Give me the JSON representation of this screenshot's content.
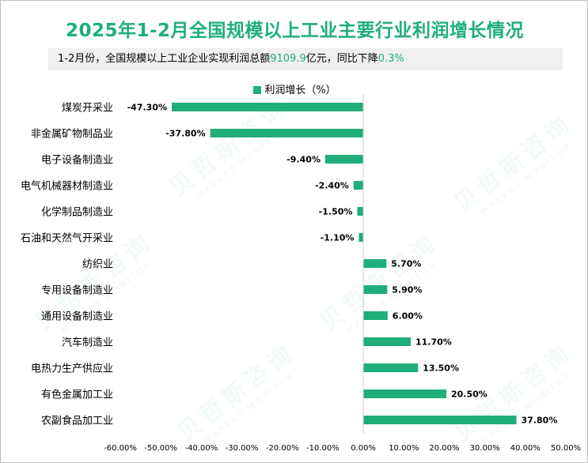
{
  "header": {
    "title": "2025年1-2月全国规模以上工业主要行业利润增长情况",
    "subtitle_prefix": "1-2月份，全国规模以上工业企业实现利润总额",
    "subtitle_amount": "9109.9",
    "subtitle_middle": "亿元，同比下降",
    "subtitle_change": "0.3%"
  },
  "watermark": {
    "brand_cn": "贝哲斯咨询",
    "brand_en": "MARKET MONITOR"
  },
  "colors": {
    "accent": "#1fae7a",
    "bar": "#1fae7a"
  },
  "chart_data": {
    "type": "bar",
    "orientation": "horizontal",
    "title": "2025年1-2月全国规模以上工业主要行业利润增长情况",
    "legend": [
      "利润增长（%）"
    ],
    "legend_position": "top",
    "categories": [
      "煤炭开采业",
      "非金属矿物制品业",
      "电子设备制造业",
      "电气机械器材制造业",
      "化学制品制造业",
      "石油和天然气开采业",
      "纺织业",
      "专用设备制造业",
      "通用设备制造业",
      "汽车制造业",
      "电热力生产供应业",
      "有色金属加工业",
      "农副食品加工业"
    ],
    "values": [
      -47.3,
      -37.8,
      -9.4,
      -2.4,
      -1.5,
      -1.1,
      5.7,
      5.9,
      6.0,
      11.7,
      13.5,
      20.5,
      37.8
    ],
    "value_labels": [
      "-47.30%",
      "-37.80%",
      "-9.40%",
      "-2.40%",
      "-1.50%",
      "-1.10%",
      "5.70%",
      "5.90%",
      "6.00%",
      "11.70%",
      "13.50%",
      "20.50%",
      "37.80%"
    ],
    "xlim": [
      -60,
      50
    ],
    "x_ticks": [
      -60,
      -50,
      -40,
      -30,
      -20,
      -10,
      0,
      10,
      20,
      30,
      40,
      50
    ],
    "x_tick_labels": [
      "-60.00%",
      "-50.00%",
      "-40.00%",
      "-30.00%",
      "-20.00%",
      "-10.00%",
      "0.00%",
      "10.00%",
      "20.00%",
      "30.00%",
      "40.00%",
      "50.00%"
    ],
    "grid": false
  }
}
